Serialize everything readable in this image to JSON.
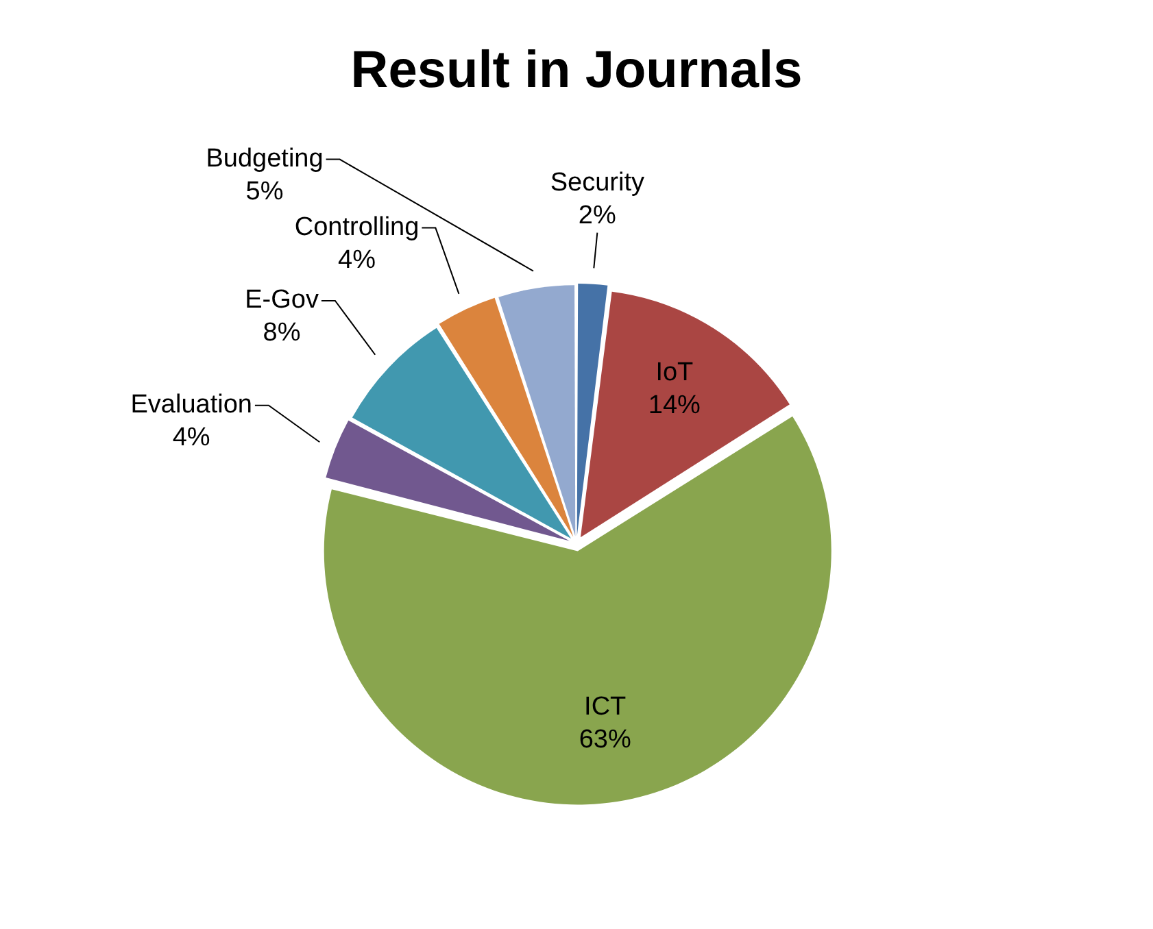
{
  "chart_data": {
    "type": "pie",
    "title": "Result in Journals",
    "categories": [
      "Security",
      "IoT",
      "ICT",
      "Evaluation",
      "E-Gov",
      "Controlling",
      "Budgeting"
    ],
    "values": [
      2,
      14,
      63,
      4,
      8,
      4,
      5
    ],
    "value_labels": [
      "2%",
      "14%",
      "63%",
      "4%",
      "8%",
      "4%",
      "5%"
    ],
    "colors": [
      "#4572a7",
      "#aa4643",
      "#89a54e",
      "#71588f",
      "#4198af",
      "#db843d",
      "#93a9cf"
    ],
    "legend": false
  }
}
